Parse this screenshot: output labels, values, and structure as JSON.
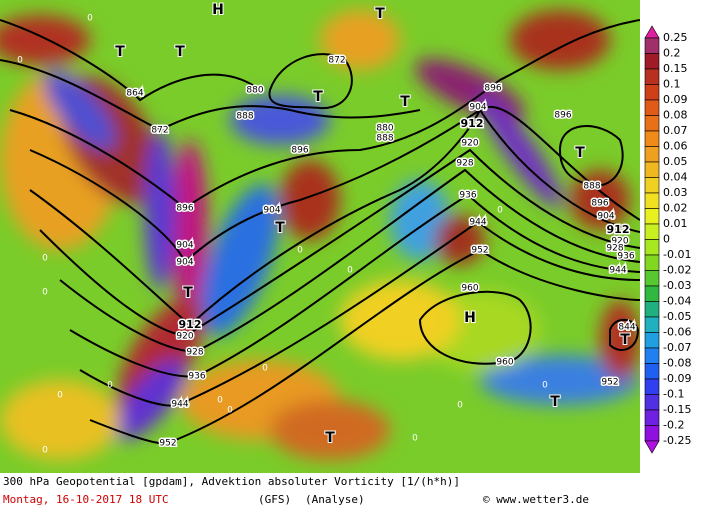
{
  "colorbar": {
    "labels": [
      "0.25",
      "0.2",
      "0.15",
      "0.1",
      "0.09",
      "0.08",
      "0.07",
      "0.06",
      "0.05",
      "0.04",
      "0.03",
      "0.02",
      "0.01",
      "0",
      "-0.01",
      "-0.02",
      "-0.03",
      "-0.04",
      "-0.05",
      "-0.06",
      "-0.07",
      "-0.08",
      "-0.09",
      "-0.1",
      "-0.15",
      "-0.2",
      "-0.25"
    ]
  },
  "contour_labels": [
    "864",
    "872",
    "872",
    "880",
    "888",
    "880",
    "888",
    "896",
    "896",
    "904",
    "904",
    "904",
    "912",
    "920",
    "928",
    "936",
    "944",
    "952",
    "896",
    "904",
    "912",
    "920",
    "928",
    "936",
    "944",
    "952",
    "960",
    "960",
    "896",
    "888",
    "896",
    "904",
    "912",
    "920",
    "928",
    "936",
    "944",
    "952",
    "844"
  ],
  "centers": [
    "H",
    "H",
    "T",
    "T",
    "T",
    "T",
    "T",
    "T",
    "T",
    "T",
    "T",
    "T",
    "T"
  ],
  "zero_labels": [
    "0",
    "0",
    "0",
    "0",
    "0",
    "0",
    "0",
    "0",
    "0",
    "0",
    "0",
    "0",
    "0",
    "0",
    "0",
    "0"
  ],
  "footer": {
    "line1": "300 hPa Geopotential [gpdam], Advektion absoluter Vorticity [1/(h*h)]",
    "date": "Montag, 16-10-2017  18 UTC",
    "model": "(GFS)",
    "run": "(Analyse)",
    "credit": "© www.wetter3.de"
  }
}
